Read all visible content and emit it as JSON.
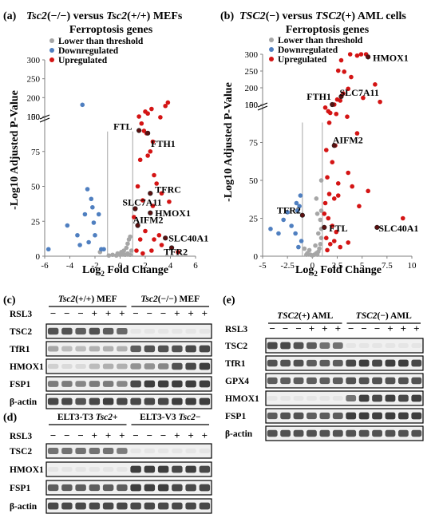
{
  "colors": {
    "threshold": "#a6a6a6",
    "down": "#4f7fc0",
    "up": "#d41414",
    "labeled": "#5a1010",
    "axis": "#7f7f7f",
    "blot_bg": "#f0f0f0",
    "band": "#1e1e1e"
  },
  "panel_a": {
    "letter": "(a)",
    "title1_left": "Tsc2",
    "title1_mid": "(−/−) versus ",
    "title1_gene2": "Tsc2",
    "title1_right": "(+/+) MEFs",
    "title2": "Ferroptosis genes",
    "legend": [
      "Lower than threshold",
      "Downregulated",
      "Upregulated"
    ],
    "ylabel": "-Log10 Adjusted P-Value",
    "xlabel_pre": "Log",
    "xlabel_sub": "2",
    "xlabel_post": " Fold Change",
    "labels": [
      "FTL",
      "FTH1",
      "TFRC",
      "SLC7A11",
      "HMOX1",
      "AIFM2",
      "SLC40A1",
      "TFR2"
    ]
  },
  "panel_b": {
    "letter": "(b)",
    "title1_left": "TSC2",
    "title1_mid": "(−) versus ",
    "title1_gene2": "TSC2",
    "title1_right": "(+) AML cells",
    "title2": "Ferroptosis genes",
    "legend": [
      "Lower than threshold",
      "Downregulated",
      "Upregulated"
    ],
    "ylabel": "-Log10 Adjusted P-Value",
    "xlabel_pre": "Log",
    "xlabel_sub": "2",
    "xlabel_post": " Fold Change",
    "labels": [
      "HMOX1",
      "SLC7A11",
      "FTH1",
      "AIFM2",
      "TFR2",
      "FTL",
      "SLC40A1"
    ]
  },
  "chart_data": [
    {
      "panel": "a",
      "type": "scatter",
      "title": "Tsc2(−/−) versus Tsc2(+/+) MEFs Ferroptosis genes",
      "xlabel": "Log2 Fold Change",
      "ylabel": "-Log10 Adjusted P-Value",
      "xlim": [
        -6,
        6
      ],
      "xticks": [
        -6,
        -4,
        -2,
        0,
        2,
        4,
        6
      ],
      "ylim": [
        0,
        300
      ],
      "yticks": [
        0,
        25,
        50,
        75,
        100,
        150,
        200,
        250,
        300
      ],
      "axis_break": [
        100,
        150
      ],
      "threshold_x": [
        -1,
        1
      ],
      "series": [
        {
          "name": "Lower than threshold",
          "points": [
            [
              -1.6,
              3
            ],
            [
              -0.9,
              0.5
            ],
            [
              -0.6,
              1
            ],
            [
              -0.3,
              0.5
            ],
            [
              0,
              1
            ],
            [
              0.2,
              2
            ],
            [
              0.3,
              4
            ],
            [
              0.5,
              6
            ],
            [
              0.6,
              9
            ],
            [
              0.7,
              12
            ],
            [
              0.8,
              14
            ],
            [
              0.9,
              4
            ],
            [
              0.4,
              1
            ],
            [
              -0.2,
              2
            ],
            [
              0.1,
              3
            ],
            [
              0.6,
              2
            ],
            [
              0.8,
              1
            ]
          ]
        },
        {
          "name": "Downregulated",
          "points": [
            [
              -5.7,
              5
            ],
            [
              -4.2,
              22
            ],
            [
              -3.4,
              15
            ],
            [
              -3.2,
              8
            ],
            [
              -2.6,
              48
            ],
            [
              -2.3,
              41
            ],
            [
              -2.2,
              35
            ],
            [
              -2.1,
              24
            ],
            [
              -2.0,
              15
            ],
            [
              -1.7,
              30
            ],
            [
              -1.5,
              5
            ],
            [
              -3.0,
              181
            ],
            [
              -2.8,
              30
            ],
            [
              -2.5,
              10
            ],
            [
              -1.3,
              5
            ]
          ]
        },
        {
          "name": "Upregulated",
          "points": [
            [
              1.5,
              150
            ],
            [
              2.0,
              163
            ],
            [
              2.2,
              158
            ],
            [
              2.5,
              170
            ],
            [
              3.2,
              148
            ],
            [
              3.6,
              178
            ],
            [
              3.8,
              187
            ],
            [
              1.5,
              113
            ],
            [
              1.9,
              112
            ],
            [
              2.2,
              106
            ],
            [
              1.7,
              95
            ],
            [
              2.1,
              88
            ],
            [
              2.6,
              82
            ],
            [
              2.4,
              75
            ],
            [
              1.6,
              69
            ],
            [
              2.2,
              72
            ],
            [
              2.7,
              58
            ],
            [
              2.9,
              52
            ],
            [
              3.3,
              45
            ],
            [
              2.4,
              45
            ],
            [
              1.4,
              50
            ],
            [
              1.8,
              40
            ],
            [
              2.6,
              36
            ],
            [
              1.2,
              34
            ],
            [
              2.4,
              31
            ],
            [
              3.9,
              39
            ],
            [
              1.1,
              28
            ],
            [
              1.4,
              22
            ],
            [
              2.0,
              18
            ],
            [
              2.7,
              12
            ],
            [
              3.3,
              8
            ],
            [
              4.1,
              6
            ],
            [
              4.6,
              3
            ],
            [
              1.3,
              4
            ],
            [
              1.8,
              2
            ],
            [
              2.5,
              4
            ],
            [
              3.1,
              15
            ],
            [
              3.6,
              13
            ],
            [
              1.6,
              12
            ]
          ]
        }
      ],
      "annotations": [
        {
          "label": "FTL",
          "x": 1.5,
          "y": 113
        },
        {
          "label": "FTH1",
          "x": 2.2,
          "y": 106
        },
        {
          "label": "TFRC",
          "x": 2.4,
          "y": 45
        },
        {
          "label": "SLC7A11",
          "x": 1.2,
          "y": 34
        },
        {
          "label": "HMOX1",
          "x": 2.4,
          "y": 31
        },
        {
          "label": "AIFM2",
          "x": 1.4,
          "y": 22
        },
        {
          "label": "SLC40A1",
          "x": 3.6,
          "y": 13
        },
        {
          "label": "TFR2",
          "x": 4.1,
          "y": 6
        }
      ]
    },
    {
      "panel": "b",
      "type": "scatter",
      "title": "TSC2(−) versus TSC2(+) AML cells Ferroptosis genes",
      "xlabel": "Log2 Fold Change",
      "ylabel": "-Log10 Adjusted P-Value",
      "xlim": [
        -5,
        10
      ],
      "xticks": [
        -5,
        -2.5,
        0,
        2.5,
        5,
        7.5,
        10
      ],
      "ylim": [
        0,
        300
      ],
      "yticks": [
        0,
        25,
        50,
        75,
        100,
        150,
        200,
        250,
        300
      ],
      "axis_break": [
        100,
        150
      ],
      "threshold_x": [
        -1,
        1
      ],
      "series": [
        {
          "name": "Lower than threshold",
          "points": [
            [
              -0.8,
              5
            ],
            [
              -0.5,
              2
            ],
            [
              -0.2,
              1
            ],
            [
              0,
              0.5
            ],
            [
              0.2,
              1
            ],
            [
              0.4,
              2
            ],
            [
              0.6,
              3
            ],
            [
              0.7,
              5
            ],
            [
              0.8,
              8
            ],
            [
              0.9,
              12
            ],
            [
              0.9,
              18
            ],
            [
              0.8,
              24
            ],
            [
              0.6,
              15
            ],
            [
              0.3,
              7
            ],
            [
              -0.3,
              4
            ],
            [
              0.5,
              28
            ],
            [
              0.9,
              30
            ],
            [
              0.4,
              38
            ],
            [
              0.9,
              50
            ],
            [
              0.5,
              1
            ],
            [
              -0.6,
              1
            ]
          ]
        },
        {
          "name": "Downregulated",
          "points": [
            [
              -4.2,
              18
            ],
            [
              -3.4,
              15
            ],
            [
              -2.9,
              24
            ],
            [
              -2.5,
              29
            ],
            [
              -2.1,
              20
            ],
            [
              -1.7,
              15
            ],
            [
              -1.5,
              30
            ],
            [
              -1.6,
              35
            ],
            [
              -1.3,
              33
            ],
            [
              -1.2,
              40
            ],
            [
              -1.1,
              10
            ],
            [
              -1.4,
              6
            ]
          ]
        },
        {
          "name": "Upregulated",
          "points": [
            [
              2.0,
              100
            ],
            [
              2.4,
              122
            ],
            [
              2.8,
              162
            ],
            [
              3.1,
              183
            ],
            [
              3.6,
              197
            ],
            [
              3.9,
              232
            ],
            [
              3.2,
              248
            ],
            [
              2.6,
              251
            ],
            [
              2.9,
              282
            ],
            [
              3.8,
              300
            ],
            [
              4.5,
              296
            ],
            [
              4.9,
              300
            ],
            [
              5.6,
              292
            ],
            [
              5.4,
              300
            ],
            [
              5.1,
              170
            ],
            [
              6.3,
              210
            ],
            [
              6.8,
              158
            ],
            [
              2.5,
              165
            ],
            [
              1.6,
              130
            ],
            [
              1.8,
              125
            ],
            [
              2.2,
              100
            ],
            [
              3.5,
              92
            ],
            [
              4.5,
              81
            ],
            [
              1.3,
              98
            ],
            [
              1.7,
              88
            ],
            [
              2.3,
              73
            ],
            [
              1.4,
              70
            ],
            [
              2.0,
              62
            ],
            [
              1.5,
              52
            ],
            [
              1.7,
              41
            ],
            [
              2.6,
              40
            ],
            [
              1.3,
              35
            ],
            [
              2.2,
              38
            ],
            [
              1.2,
              28
            ],
            [
              1.6,
              25
            ],
            [
              2.0,
              20
            ],
            [
              2.4,
              16
            ],
            [
              1.4,
              12
            ],
            [
              1.8,
              8
            ],
            [
              2.8,
              6
            ],
            [
              1.5,
              4
            ],
            [
              3.6,
              9
            ],
            [
              4.7,
              33
            ],
            [
              5.6,
              43
            ],
            [
              3.6,
              55
            ],
            [
              2.6,
              48
            ],
            [
              4.0,
              46
            ],
            [
              9.1,
              25
            ],
            [
              6.5,
              19
            ],
            [
              2.2,
              10
            ],
            [
              1.2,
              19
            ]
          ]
        }
      ],
      "annotations": [
        {
          "label": "HMOX1",
          "x": 5.6,
          "y": 292
        },
        {
          "label": "SLC7A11",
          "x": 2.9,
          "y": 174
        },
        {
          "label": "FTH1",
          "x": 2.0,
          "y": 100
        },
        {
          "label": "AIFM2",
          "x": 2.2,
          "y": 73
        },
        {
          "label": "TFR2",
          "x": -1.0,
          "y": 27
        },
        {
          "label": "FTL",
          "x": 1.2,
          "y": 19
        },
        {
          "label": "SLC40A1",
          "x": 6.5,
          "y": 19
        }
      ]
    }
  ],
  "blot_c": {
    "letter": "(c)",
    "group1_gene": "Tsc2",
    "group1_rest": "(+/+) MEF",
    "group2_gene": "Tsc2",
    "group2_rest": "(−/−) MEF",
    "treatment": "RSL3",
    "signs": [
      "−",
      "−",
      "−",
      "+",
      "+",
      "+",
      "−",
      "−",
      "−",
      "+",
      "+",
      "+"
    ],
    "rows": [
      {
        "label": "TSC2",
        "levels": [
          0.75,
          0.75,
          0.7,
          0.75,
          0.7,
          0.65,
          0.05,
          0.05,
          0.05,
          0.05,
          0.05,
          0.05
        ]
      },
      {
        "label": "TfR1",
        "levels": [
          0.35,
          0.25,
          0.25,
          0.3,
          0.3,
          0.3,
          0.7,
          0.75,
          0.75,
          0.75,
          0.8,
          0.8
        ]
      },
      {
        "label": "HMOX1",
        "levels": [
          0.15,
          0.1,
          0.1,
          0.25,
          0.3,
          0.3,
          0.45,
          0.45,
          0.5,
          0.75,
          0.8,
          0.85
        ]
      },
      {
        "label": "FSP1",
        "levels": [
          0.55,
          0.55,
          0.5,
          0.55,
          0.55,
          0.5,
          0.8,
          0.85,
          0.85,
          0.85,
          0.85,
          0.85
        ]
      },
      {
        "label": "β-actin",
        "levels": [
          0.8,
          0.8,
          0.75,
          0.8,
          0.85,
          0.8,
          0.8,
          0.8,
          0.8,
          0.85,
          0.85,
          0.85
        ]
      }
    ]
  },
  "blot_d": {
    "letter": "(d)",
    "group1_prefix": "ELT3-T3 ",
    "group1_gene": "Tsc2",
    "group1_suffix": "+",
    "group2_prefix": "ELT3-V3 ",
    "group2_gene": "Tsc2",
    "group2_suffix": "−",
    "treatment": "RSL3",
    "signs": [
      "−",
      "−",
      "−",
      "+",
      "+",
      "+",
      "−",
      "−",
      "−",
      "+",
      "+",
      "+"
    ],
    "rows": [
      {
        "label": "TSC2",
        "levels": [
          0.6,
          0.6,
          0.6,
          0.6,
          0.6,
          0.55,
          0.05,
          0.05,
          0.05,
          0.05,
          0.05,
          0.05
        ]
      },
      {
        "label": "HMOX1",
        "levels": [
          0.05,
          0.05,
          0.05,
          0.05,
          0.05,
          0.05,
          0.85,
          0.85,
          0.85,
          0.8,
          0.85,
          0.8
        ]
      },
      {
        "label": "FSP1",
        "levels": [
          0.7,
          0.7,
          0.7,
          0.7,
          0.7,
          0.7,
          0.85,
          0.85,
          0.85,
          0.8,
          0.8,
          0.8
        ]
      },
      {
        "label": "β-actin",
        "levels": [
          0.8,
          0.8,
          0.8,
          0.8,
          0.8,
          0.8,
          0.8,
          0.8,
          0.8,
          0.8,
          0.8,
          0.8
        ]
      }
    ]
  },
  "blot_e": {
    "letter": "(e)",
    "group1_gene": "TSC2",
    "group1_rest": "(+) AML",
    "group2_gene": "TSC2",
    "group2_rest": "(−) AML",
    "treatment": "RSL3",
    "signs": [
      "−",
      "−",
      "−",
      "+",
      "+",
      "+",
      "−",
      "−",
      "−",
      "+",
      "+",
      "+"
    ],
    "rows": [
      {
        "label": "TSC2",
        "levels": [
          0.8,
          0.8,
          0.75,
          0.7,
          0.6,
          0.6,
          0.05,
          0.05,
          0.05,
          0.05,
          0.05,
          0.05
        ]
      },
      {
        "label": "TfR1",
        "levels": [
          0.75,
          0.75,
          0.75,
          0.7,
          0.7,
          0.7,
          0.8,
          0.85,
          0.8,
          0.85,
          0.85,
          0.8
        ]
      },
      {
        "label": "GPX4",
        "levels": [
          0.7,
          0.7,
          0.7,
          0.7,
          0.7,
          0.7,
          0.75,
          0.75,
          0.75,
          0.75,
          0.75,
          0.75
        ]
      },
      {
        "label": "HMOX1",
        "levels": [
          0.05,
          0.05,
          0.05,
          0.05,
          0.05,
          0.05,
          0.6,
          0.85,
          0.8,
          0.85,
          0.8,
          0.85
        ]
      },
      {
        "label": "FSP1",
        "levels": [
          0.7,
          0.75,
          0.75,
          0.7,
          0.7,
          0.7,
          0.85,
          0.85,
          0.85,
          0.85,
          0.85,
          0.85
        ]
      },
      {
        "label": "β-actin",
        "levels": [
          0.75,
          0.75,
          0.75,
          0.75,
          0.75,
          0.75,
          0.75,
          0.75,
          0.75,
          0.75,
          0.75,
          0.75
        ]
      }
    ]
  }
}
